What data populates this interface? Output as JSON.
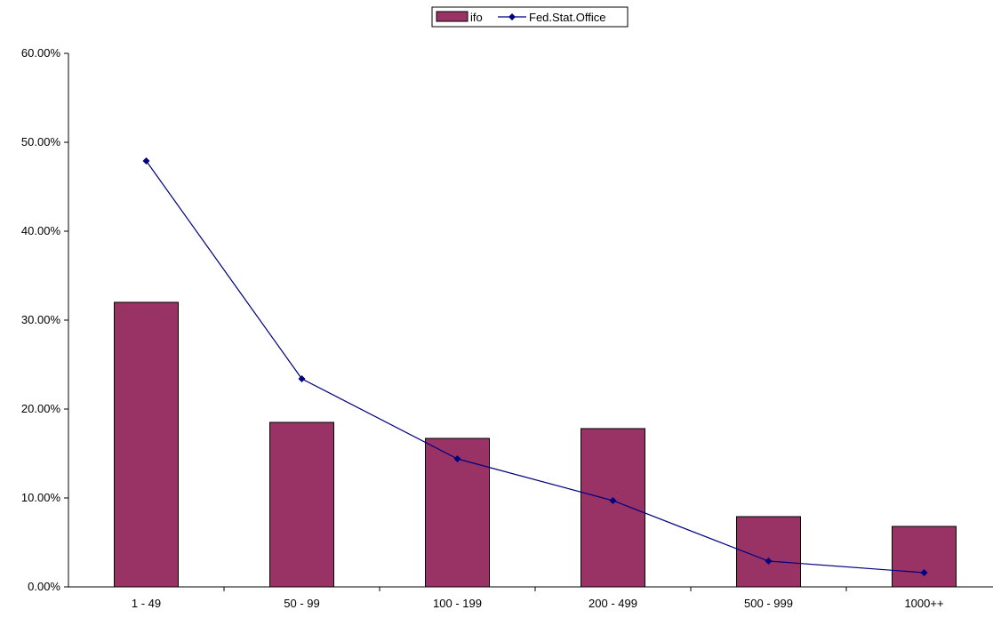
{
  "chart_data": {
    "type": "bar",
    "categories": [
      "1 - 49",
      "50 - 99",
      "100 - 199",
      "200 - 499",
      "500 - 999",
      "1000++"
    ],
    "series": [
      {
        "name": "ifo",
        "type": "bar",
        "values": [
          0.32,
          0.185,
          0.167,
          0.178,
          0.079,
          0.068
        ],
        "color": "#993366"
      },
      {
        "name": "Fed.Stat.Office",
        "type": "line",
        "values": [
          0.479,
          0.234,
          0.144,
          0.097,
          0.029,
          0.016
        ],
        "color": "#000080"
      }
    ],
    "y_ticks": [
      "0.00%",
      "10.00%",
      "20.00%",
      "30.00%",
      "40.00%",
      "50.00%",
      "60.00%"
    ],
    "ylim": [
      0,
      0.6
    ],
    "y_format": "percent",
    "grid": false,
    "legend_position": "top-center"
  }
}
